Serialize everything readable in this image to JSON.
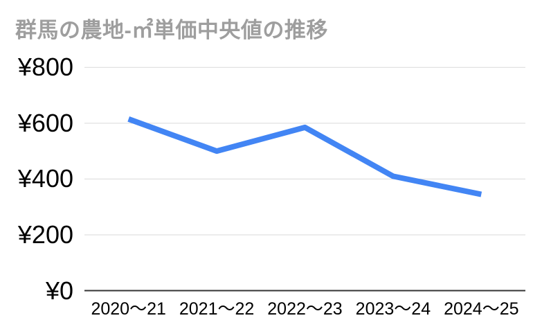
{
  "chart_data": {
    "type": "line",
    "title": "群馬の農地-㎡単価中央値の推移",
    "categories": [
      "2020〜21",
      "2021〜22",
      "2022〜23",
      "2023〜24",
      "2024〜25"
    ],
    "values": [
      615,
      500,
      585,
      410,
      345
    ],
    "xlabel": "",
    "ylabel": "",
    "ylim": [
      0,
      800
    ],
    "yticks": [
      {
        "value": 0,
        "label": "¥0"
      },
      {
        "value": 200,
        "label": "¥200"
      },
      {
        "value": 400,
        "label": "¥400"
      },
      {
        "value": 600,
        "label": "¥600"
      },
      {
        "value": 800,
        "label": "¥800"
      }
    ],
    "currency_prefix": "¥",
    "grid": true,
    "legend": "none",
    "colors": {
      "line": "#4285f4",
      "grid": "#d9d9d9",
      "axis": "#333333",
      "title": "#9e9e9e",
      "tick_label": "#000000",
      "background": "#ffffff"
    }
  }
}
